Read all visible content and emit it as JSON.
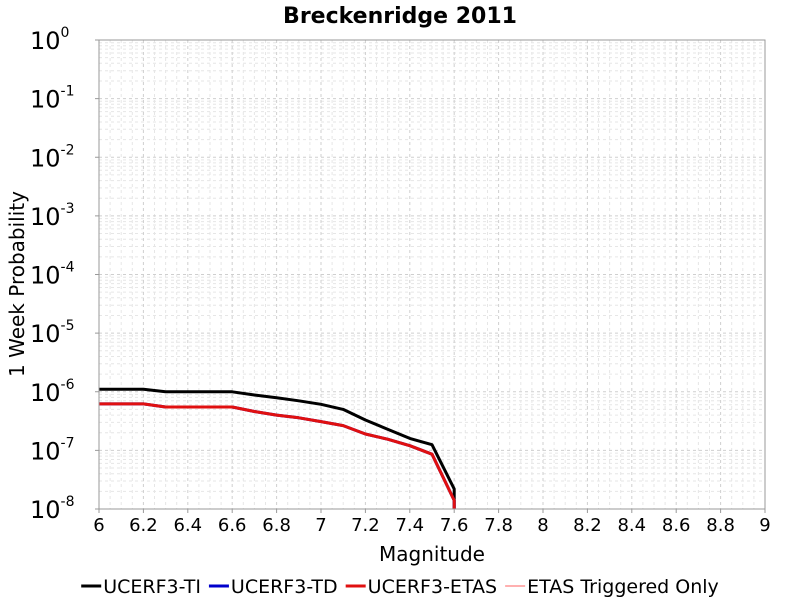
{
  "chart_data": {
    "type": "line",
    "title": "Breckenridge 2011",
    "xlabel": "Magnitude",
    "ylabel": "1 Week Probability",
    "xlim": [
      6,
      9
    ],
    "ylim": [
      1e-08,
      1
    ],
    "y_scale": "log",
    "x_ticks": [
      "6",
      "6.2",
      "6.4",
      "6.6",
      "6.8",
      "7",
      "7.2",
      "7.4",
      "7.6",
      "7.8",
      "8",
      "8.2",
      "8.4",
      "8.6",
      "8.8",
      "9"
    ],
    "y_ticks": [
      {
        "base": "10",
        "exp": "0"
      },
      {
        "base": "10",
        "exp": "-1"
      },
      {
        "base": "10",
        "exp": "-2"
      },
      {
        "base": "10",
        "exp": "-3"
      },
      {
        "base": "10",
        "exp": "-4"
      },
      {
        "base": "10",
        "exp": "-5"
      },
      {
        "base": "10",
        "exp": "-6"
      },
      {
        "base": "10",
        "exp": "-7"
      },
      {
        "base": "10",
        "exp": "-8"
      }
    ],
    "grid": true,
    "legend_position": "bottom",
    "series": [
      {
        "name": "UCERF3-TI",
        "color": "#000000",
        "x": [
          6.0,
          6.2,
          6.3,
          6.6,
          6.7,
          6.8,
          6.9,
          7.0,
          7.1,
          7.2,
          7.3,
          7.4,
          7.5,
          7.6,
          7.6
        ],
        "y": [
          1.1e-06,
          1.1e-06,
          1e-06,
          1e-06,
          8.8e-07,
          7.9e-07,
          7e-07,
          6.1e-07,
          5e-07,
          3.3e-07,
          2.3e-07,
          1.6e-07,
          1.25e-07,
          2.2e-08,
          1e-08
        ]
      },
      {
        "name": "UCERF3-TD",
        "color": "#0000cc",
        "x": [
          6.0,
          6.2,
          6.3,
          6.6,
          6.7,
          6.8,
          6.9,
          7.0,
          7.1,
          7.2,
          7.3,
          7.4,
          7.5,
          7.6,
          7.6
        ],
        "y": [
          6.2e-07,
          6.2e-07,
          5.5e-07,
          5.5e-07,
          4.6e-07,
          4e-07,
          3.6e-07,
          3.1e-07,
          2.65e-07,
          1.9e-07,
          1.55e-07,
          1.2e-07,
          8.6e-08,
          1.4e-08,
          1e-08
        ]
      },
      {
        "name": "UCERF3-ETAS",
        "color": "#e01010",
        "x": [
          6.0,
          6.2,
          6.3,
          6.6,
          6.7,
          6.8,
          6.9,
          7.0,
          7.1,
          7.2,
          7.3,
          7.4,
          7.5,
          7.6,
          7.6
        ],
        "y": [
          6.2e-07,
          6.2e-07,
          5.5e-07,
          5.5e-07,
          4.6e-07,
          4e-07,
          3.6e-07,
          3.1e-07,
          2.65e-07,
          1.9e-07,
          1.55e-07,
          1.2e-07,
          8.6e-08,
          1.4e-08,
          1e-08
        ]
      },
      {
        "name": "ETAS Triggered Only",
        "color": "#ff6060",
        "x": [],
        "y": []
      }
    ]
  }
}
